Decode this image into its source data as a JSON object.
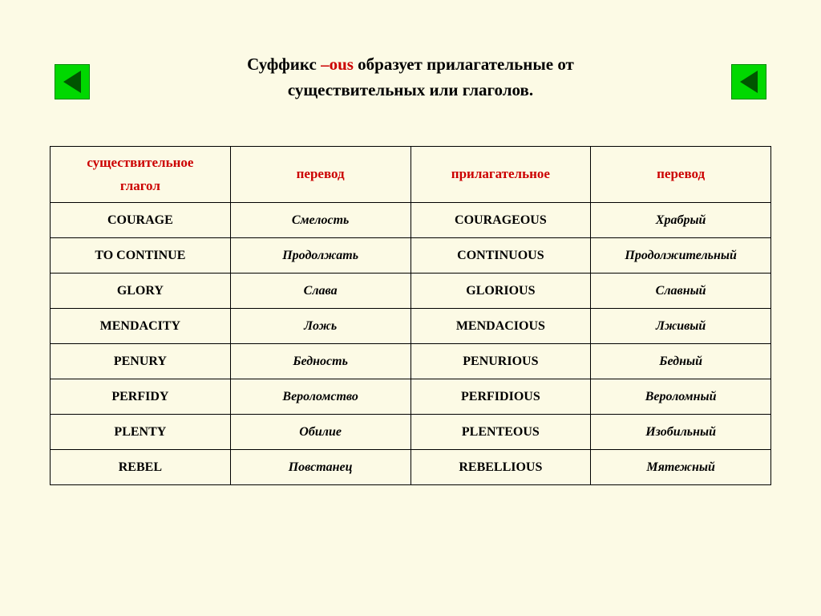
{
  "colors": {
    "page_bg": "#fcfae5",
    "accent_red": "#cc0000",
    "nav_green": "#00d800",
    "arrow_fill": "#005500",
    "border": "#000000",
    "text": "#000000"
  },
  "title": {
    "pre": "Суффикс ",
    "suffix": "–ous",
    "post": " образует прилагательные от",
    "line2": "существительных или глаголов."
  },
  "table": {
    "headers": {
      "col0_line1": "существительное",
      "col0_line2": "глагол",
      "col1": "перевод",
      "col2": "прилагательное",
      "col3": "перевод"
    },
    "rows": [
      {
        "base": "COURAGE",
        "trans1": "Смелость",
        "adj": "COURAGEOUS",
        "trans2": "Храбрый"
      },
      {
        "base": "TO CONTINUE",
        "trans1": "Продолжать",
        "adj": "CONTINUOUS",
        "trans2": "Продолжительный"
      },
      {
        "base": "GLORY",
        "trans1": "Слава",
        "adj": "GLORIOUS",
        "trans2": "Славный"
      },
      {
        "base": "MENDACITY",
        "trans1": "Ложь",
        "adj": "MENDACIOUS",
        "trans2": "Лживый"
      },
      {
        "base": "PENURY",
        "trans1": "Бедность",
        "adj": "PENURIOUS",
        "trans2": "Бедный"
      },
      {
        "base": "PERFIDY",
        "trans1": "Вероломство",
        "adj": "PERFIDIOUS",
        "trans2": "Вероломный"
      },
      {
        "base": "PLENTY",
        "trans1": "Обилие",
        "adj": "PLENTEOUS",
        "trans2": "Изобильный"
      },
      {
        "base": "REBEL",
        "trans1": "Повстанец",
        "adj": "REBELLIOUS",
        "trans2": "Мятежный"
      }
    ]
  }
}
